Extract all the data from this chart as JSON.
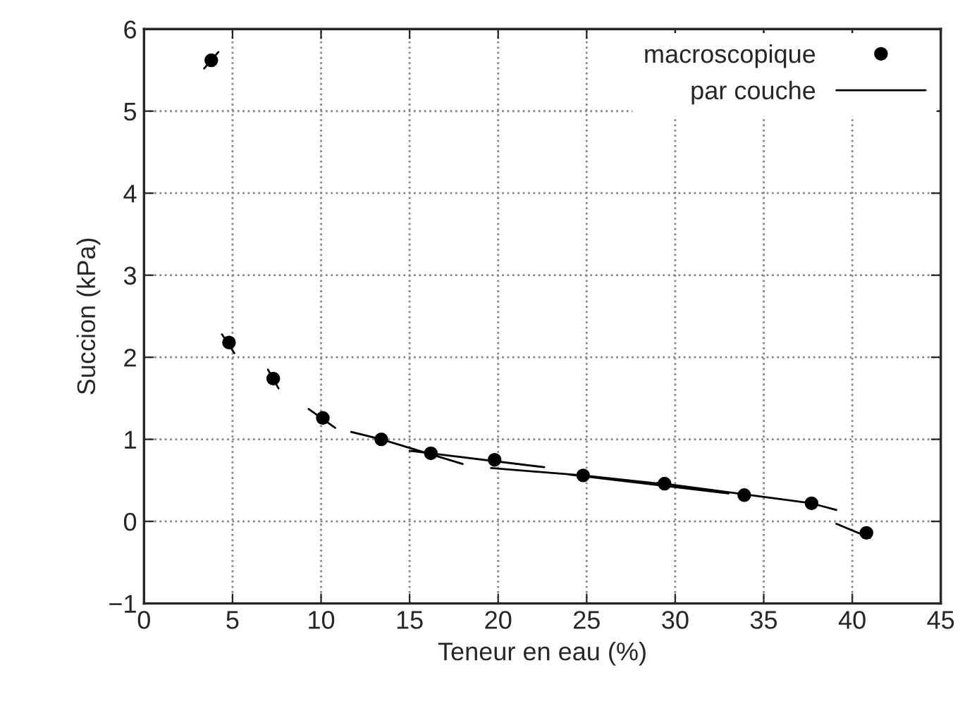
{
  "chart_data": {
    "type": "scatter",
    "xlabel": "Teneur en eau (%)",
    "ylabel": "Succion (kPa)",
    "xlim": [
      0,
      45
    ],
    "xticks": [
      0,
      5,
      10,
      15,
      20,
      25,
      30,
      35,
      40,
      45
    ],
    "ylim": [
      -1,
      6
    ],
    "yticks": [
      {
        "value": -1,
        "label": "−1"
      },
      0,
      1,
      2,
      3,
      4,
      5,
      6
    ],
    "grid": true,
    "legend": "top right",
    "series": [
      {
        "name": "macroscopique",
        "color": "#000000",
        "marker": "circle",
        "x": [
          3.8,
          4.8,
          7.3,
          10.1,
          13.4,
          16.2,
          19.8,
          24.8,
          29.4,
          33.9,
          37.7,
          40.8
        ],
        "values": [
          5.62,
          2.18,
          1.74,
          1.26,
          1.0,
          0.83,
          0.75,
          0.56,
          0.46,
          0.32,
          0.22,
          -0.14
        ]
      },
      {
        "name": "par couche",
        "type": "line",
        "color": "#000000",
        "line_style": "solid",
        "x": [
          3.4,
          4.2,
          null,
          4.4,
          5.1,
          null,
          7.0,
          7.6,
          null,
          9.3,
          10.8,
          null,
          11.7,
          13.4,
          18.0,
          null,
          15.0,
          22.6,
          null,
          19.6,
          24.8,
          29.5,
          null,
          24.0,
          33.0,
          null,
          29.0,
          37.7,
          39.1,
          null,
          39.1,
          41.0
        ],
        "values": [
          5.52,
          5.72,
          null,
          2.28,
          2.05,
          null,
          1.85,
          1.62,
          null,
          1.37,
          1.14,
          null,
          1.09,
          1.0,
          0.7,
          null,
          0.86,
          0.66,
          null,
          0.65,
          0.56,
          0.45,
          null,
          0.57,
          0.34,
          null,
          0.47,
          0.22,
          0.14,
          null,
          -0.03,
          -0.2
        ]
      }
    ]
  }
}
